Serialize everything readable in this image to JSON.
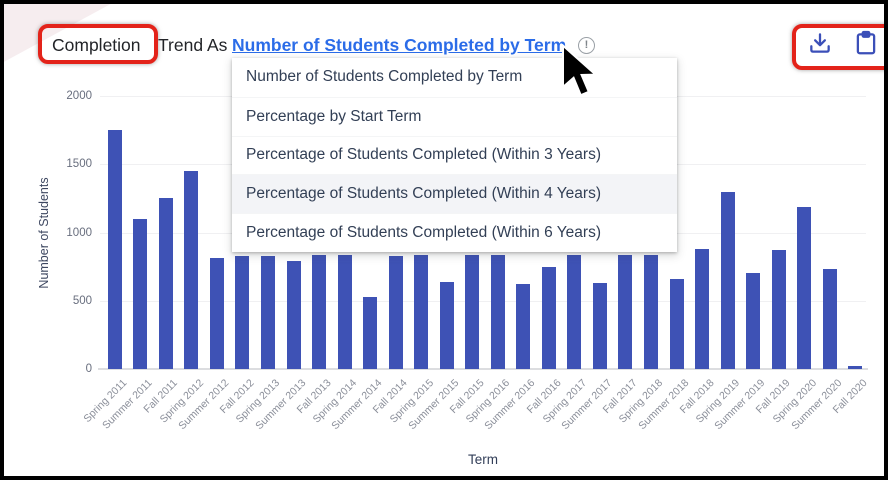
{
  "header": {
    "highlighted_word": "Completion",
    "title_rest": "Trend As",
    "metric_link": "Number of Students Completed by Term"
  },
  "icons": {
    "info_glyph": "!",
    "download": "download-icon",
    "clipboard": "clipboard-icon"
  },
  "dropdown": {
    "items": [
      "Number of Students Completed by Term",
      "Percentage by Start Term",
      "Percentage of Students Completed (Within 3 Years)",
      "Percentage of Students Completed (Within 4 Years)",
      "Percentage of Students Completed (Within 6 Years)"
    ],
    "highlighted_index": 3
  },
  "chart_data": {
    "type": "bar",
    "title": "Completion Trend As Number of Students Completed by Term",
    "xlabel": "Term",
    "ylabel": "Number of Students",
    "ylim": [
      0,
      2000
    ],
    "yticks": [
      0,
      500,
      1000,
      1500,
      2000
    ],
    "grid": true,
    "legend": false,
    "bar_color": "#3e52b5",
    "categories": [
      "Spring 2011",
      "Summer 2011",
      "Fall 2011",
      "Spring 2012",
      "Summer 2012",
      "Fall 2012",
      "Spring 2013",
      "Summer 2013",
      "Fall 2013",
      "Spring 2014",
      "Summer 2014",
      "Fall 2014",
      "Spring 2015",
      "Summer 2015",
      "Fall 2015",
      "Spring 2016",
      "Summer 2016",
      "Fall 2016",
      "Spring 2017",
      "Summer 2017",
      "Fall 2017",
      "Spring 2018",
      "Summer 2018",
      "Fall 2018",
      "Spring 2019",
      "Summer 2019",
      "Fall 2019",
      "Spring 2020",
      "Summer 2020",
      "Fall 2020"
    ],
    "values": [
      1750,
      1100,
      1250,
      1450,
      810,
      830,
      830,
      790,
      835,
      835,
      530,
      830,
      835,
      640,
      835,
      835,
      620,
      750,
      835,
      630,
      835,
      835,
      660,
      880,
      1300,
      700,
      870,
      1190,
      730,
      20
    ]
  },
  "colors": {
    "bar": "#3e52b5",
    "link": "#2b6ce8",
    "annotation_red": "#e3231a",
    "icon_blue": "#3b4fb8"
  }
}
